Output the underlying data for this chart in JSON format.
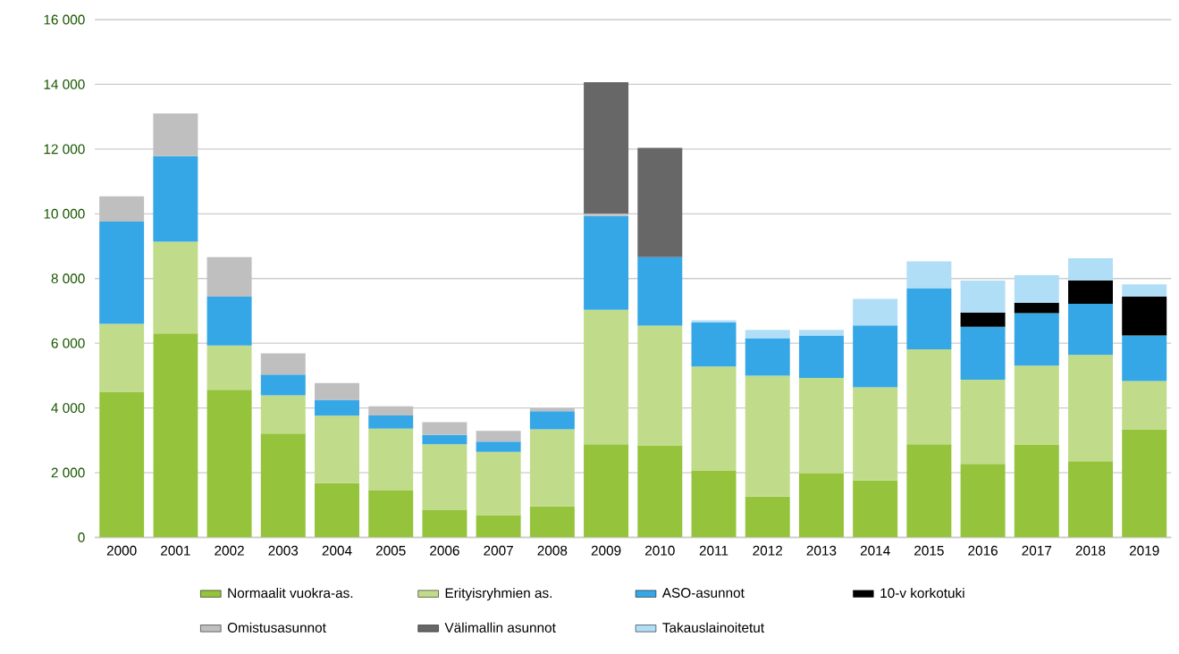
{
  "chart_data": {
    "type": "bar",
    "stacked": true,
    "grid": "y",
    "legend": "bottom",
    "categories": [
      "2000",
      "2001",
      "2002",
      "2003",
      "2004",
      "2005",
      "2006",
      "2007",
      "2008",
      "2009",
      "2010",
      "2011",
      "2012",
      "2013",
      "2014",
      "2015",
      "2016",
      "2017",
      "2018",
      "2019"
    ],
    "ylim": [
      0,
      16000
    ],
    "yticks": [
      0,
      {
        "value": 2000,
        "label": "2 000"
      },
      {
        "value": 4000,
        "label": "4 000"
      },
      {
        "value": 6000,
        "label": "6 000"
      },
      {
        "value": 8000,
        "label": "8 000"
      },
      {
        "value": 10000,
        "label": "10 000"
      },
      {
        "value": 12000,
        "label": "12 000"
      },
      {
        "value": 14000,
        "label": "14 000"
      },
      {
        "value": 16000,
        "label": "16 000"
      }
    ],
    "series": [
      {
        "name": "Normaalit vuokra-as.",
        "color": "#95c33b",
        "values": [
          4500,
          6300,
          4560,
          3210,
          1680,
          1450,
          860,
          690,
          960,
          2880,
          2840,
          2070,
          1260,
          1970,
          1760,
          2880,
          2270,
          2870,
          2350,
          3340
        ]
      },
      {
        "name": "Erityisryhmien as.",
        "color": "#c0dc8a",
        "values": [
          2100,
          2840,
          1370,
          1180,
          2080,
          1910,
          2020,
          1950,
          2380,
          4150,
          3700,
          3210,
          3740,
          2960,
          2880,
          2930,
          2600,
          2440,
          3290,
          1490
        ]
      },
      {
        "name": "ASO-asunnot",
        "color": "#36a7e6",
        "values": [
          3160,
          2640,
          1510,
          640,
          490,
          410,
          290,
          320,
          560,
          2900,
          2120,
          1360,
          1160,
          1310,
          1910,
          1890,
          1640,
          1620,
          1580,
          1410
        ]
      },
      {
        "name": "10-v korkotuki",
        "color": "#000000",
        "values": [
          null,
          null,
          null,
          null,
          null,
          null,
          null,
          null,
          null,
          null,
          null,
          null,
          null,
          null,
          null,
          null,
          440,
          320,
          720,
          1200
        ]
      },
      {
        "name": "Omistusasunnot",
        "color": "#bfbfbf",
        "values": [
          780,
          1320,
          1220,
          660,
          520,
          280,
          390,
          330,
          90,
          80,
          null,
          null,
          null,
          null,
          null,
          null,
          null,
          null,
          null,
          null
        ]
      },
      {
        "name": "Välimallin asunnot",
        "color": "#676767",
        "values": [
          null,
          null,
          null,
          null,
          null,
          null,
          null,
          null,
          null,
          4060,
          3380,
          null,
          null,
          null,
          null,
          null,
          null,
          null,
          null,
          null
        ]
      },
      {
        "name": "Takauslainoitetut",
        "color": "#b1def7",
        "values": [
          null,
          null,
          null,
          null,
          null,
          null,
          null,
          null,
          null,
          null,
          null,
          70,
          250,
          170,
          820,
          830,
          990,
          850,
          690,
          380
        ]
      }
    ]
  }
}
